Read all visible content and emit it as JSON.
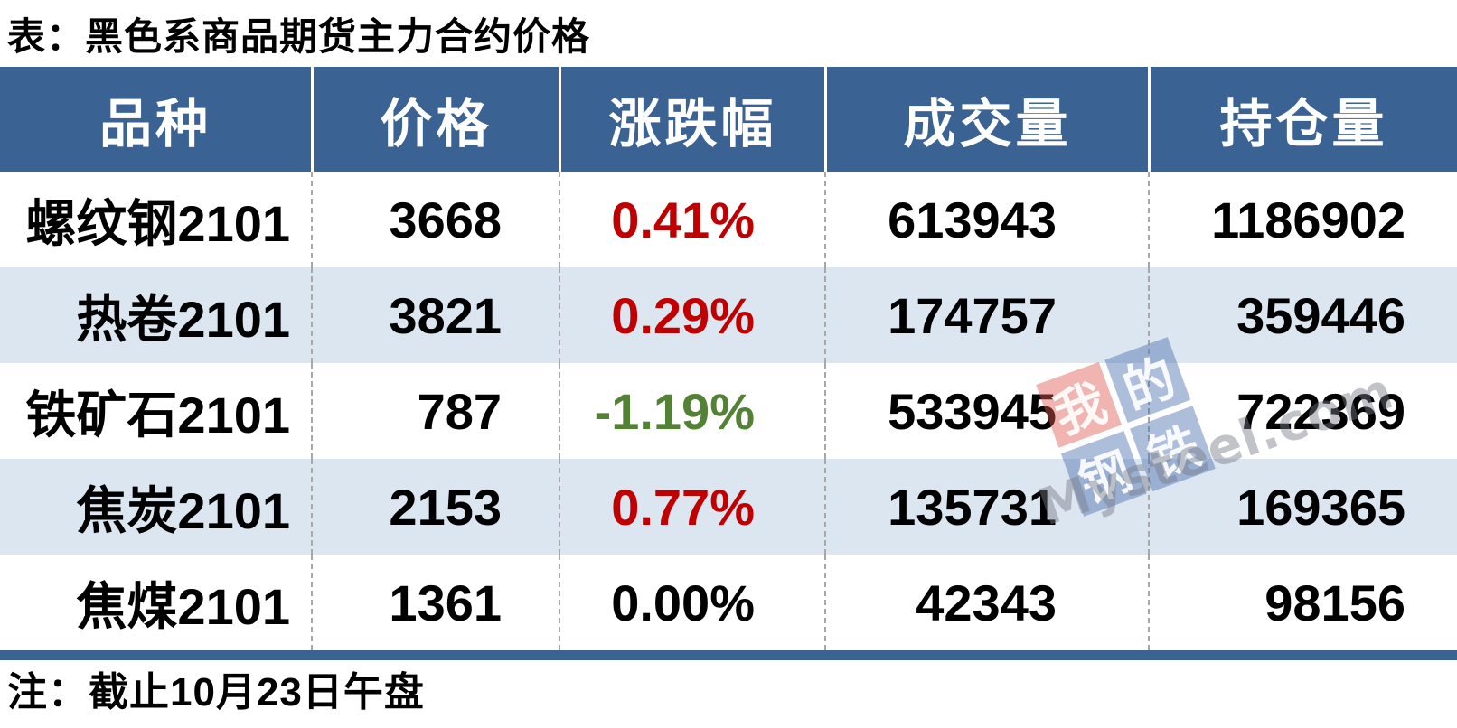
{
  "chart_data": {
    "type": "table",
    "title": "表：黑色系商品期货主力合约价格",
    "columns": [
      "品种",
      "价格",
      "涨跌幅",
      "成交量",
      "持仓量"
    ],
    "rows": [
      [
        "螺纹钢2101",
        "3668",
        "0.41%",
        "613943",
        "1186902"
      ],
      [
        "热卷2101",
        "3821",
        "0.29%",
        "174757",
        "359446"
      ],
      [
        "铁矿石2101",
        "787",
        "-1.19%",
        "533945",
        "722369"
      ],
      [
        "焦炭2101",
        "2153",
        "0.77%",
        "135731",
        "169365"
      ],
      [
        "焦煤2101",
        "1361",
        "0.00%",
        "42343",
        "98156"
      ]
    ],
    "change_directions": [
      "up",
      "up",
      "down",
      "up",
      "flat"
    ],
    "note": "注：截止10月23日午盘"
  },
  "colors": {
    "header_bg": "#3A6292",
    "row_alt_bg": "#DCE6F1",
    "up": "#C00000",
    "down": "#538135",
    "flat": "#000000"
  },
  "watermark": {
    "tiles": [
      {
        "char": "我",
        "bg": "red"
      },
      {
        "char": "的",
        "bg": "blue"
      },
      {
        "char": "钢",
        "bg": "blue"
      },
      {
        "char": "铁",
        "bg": "blue"
      }
    ],
    "text": "Mysteel.com"
  }
}
